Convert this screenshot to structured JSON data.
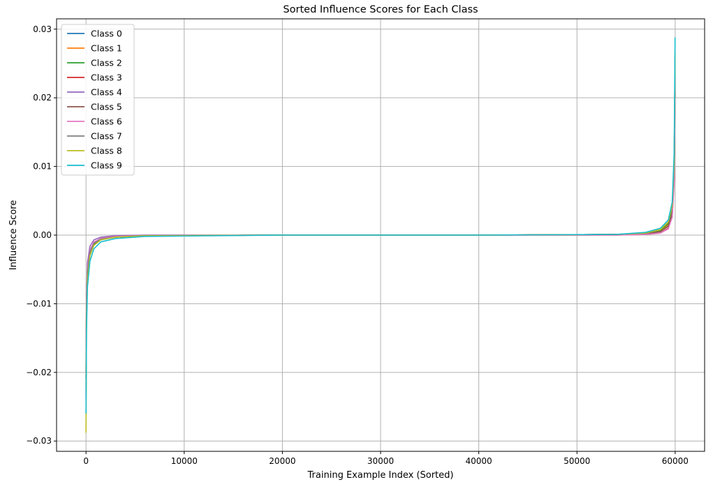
{
  "chart_data": {
    "type": "line",
    "title": "Sorted Influence Scores for Each Class",
    "xlabel": "Training Example Index (Sorted)",
    "ylabel": "Influence Score",
    "xlim": [
      -3000,
      63000
    ],
    "ylim": [
      -0.0315,
      0.0315
    ],
    "xticks": [
      {
        "value": 0,
        "label": "0"
      },
      {
        "value": 10000,
        "label": "10000"
      },
      {
        "value": 20000,
        "label": "20000"
      },
      {
        "value": 30000,
        "label": "30000"
      },
      {
        "value": 40000,
        "label": "40000"
      },
      {
        "value": 50000,
        "label": "50000"
      },
      {
        "value": 60000,
        "label": "60000"
      }
    ],
    "yticks": [
      {
        "value": -0.03,
        "label": "−0.03"
      },
      {
        "value": -0.02,
        "label": "−0.02"
      },
      {
        "value": -0.01,
        "label": "−0.01"
      },
      {
        "value": 0.0,
        "label": "0.00"
      },
      {
        "value": 0.01,
        "label": "0.01"
      },
      {
        "value": 0.02,
        "label": "0.02"
      },
      {
        "value": 0.03,
        "label": "0.03"
      }
    ],
    "grid": true,
    "legend_position": "top-left",
    "series": [
      {
        "name": "Class 0",
        "color": "#1f77b4",
        "x": [
          0,
          50,
          150,
          400,
          800,
          1500,
          3000,
          6000,
          20000,
          40000,
          54000,
          57000,
          58500,
          59300,
          59700,
          59900,
          59990
        ],
        "y": [
          -0.023,
          -0.012,
          -0.006,
          -0.0028,
          -0.0014,
          -0.0007,
          -0.0003,
          -0.0001,
          0.0,
          0.0,
          0.0001,
          0.0003,
          0.0007,
          0.0018,
          0.004,
          0.01,
          0.025
        ]
      },
      {
        "name": "Class 1",
        "color": "#ff7f0e",
        "x": [
          0,
          50,
          150,
          400,
          800,
          1500,
          3000,
          6000,
          20000,
          40000,
          54000,
          57000,
          58500,
          59300,
          59700,
          59900,
          59990
        ],
        "y": [
          -0.02,
          -0.01,
          -0.005,
          -0.0022,
          -0.0011,
          -0.0005,
          -0.0002,
          -0.0001,
          0.0,
          0.0,
          0.0001,
          0.0002,
          0.0006,
          0.0015,
          0.0035,
          0.009,
          0.022
        ]
      },
      {
        "name": "Class 2",
        "color": "#2ca02c",
        "x": [
          0,
          50,
          150,
          400,
          800,
          1500,
          3000,
          6000,
          20000,
          40000,
          54000,
          57000,
          58500,
          59300,
          59700,
          59900,
          59990
        ],
        "y": [
          -0.022,
          -0.011,
          -0.0055,
          -0.0026,
          -0.0013,
          -0.0006,
          -0.0003,
          -0.0001,
          0.0,
          0.0,
          0.0001,
          0.0003,
          0.0007,
          0.0017,
          0.0038,
          0.0095,
          0.024
        ]
      },
      {
        "name": "Class 3",
        "color": "#d62728",
        "x": [
          0,
          50,
          150,
          400,
          800,
          1500,
          3000,
          6000,
          20000,
          40000,
          54000,
          57000,
          58500,
          59300,
          59700,
          59900,
          59990
        ],
        "y": [
          -0.021,
          -0.0105,
          -0.0052,
          -0.0024,
          -0.0012,
          -0.0006,
          -0.0002,
          -0.0001,
          0.0,
          0.0,
          0.0,
          0.0001,
          0.0003,
          0.001,
          0.0028,
          0.008,
          0.021
        ]
      },
      {
        "name": "Class 4",
        "color": "#9467bd",
        "x": [
          0,
          50,
          150,
          400,
          800,
          1500,
          3000,
          6000,
          20000,
          40000,
          54000,
          57000,
          58500,
          59300,
          59700,
          59900,
          59990
        ],
        "y": [
          -0.024,
          -0.009,
          -0.004,
          -0.0016,
          -0.0007,
          -0.0003,
          -0.0001,
          0.0,
          0.0,
          0.0,
          0.0001,
          0.0002,
          0.0005,
          0.0013,
          0.0032,
          0.0085,
          0.023
        ]
      },
      {
        "name": "Class 5",
        "color": "#8c564b",
        "x": [
          0,
          50,
          150,
          400,
          800,
          1500,
          3000,
          6000,
          20000,
          40000,
          54000,
          57000,
          58500,
          59300,
          59700,
          59900,
          59990
        ],
        "y": [
          -0.02,
          -0.01,
          -0.005,
          -0.0023,
          -0.0011,
          -0.0005,
          -0.0002,
          -0.0001,
          0.0,
          0.0,
          0.0001,
          0.0002,
          0.0005,
          0.0013,
          0.0031,
          0.0082,
          0.021
        ]
      },
      {
        "name": "Class 6",
        "color": "#e377c2",
        "x": [
          0,
          50,
          150,
          400,
          800,
          1500,
          3000,
          6000,
          20000,
          40000,
          54000,
          57000,
          58500,
          59300,
          59700,
          59900,
          59990
        ],
        "y": [
          -0.019,
          -0.0095,
          -0.0048,
          -0.0022,
          -0.001,
          -0.0005,
          -0.0002,
          -0.0001,
          0.0,
          0.0,
          0.0,
          0.0001,
          0.0003,
          0.0009,
          0.0026,
          0.0075,
          0.02
        ]
      },
      {
        "name": "Class 7",
        "color": "#7f7f7f",
        "x": [
          0,
          50,
          150,
          400,
          800,
          1500,
          3000,
          6000,
          20000,
          40000,
          54000,
          57000,
          58500,
          59300,
          59700,
          59900,
          59990
        ],
        "y": [
          -0.021,
          -0.0105,
          -0.0053,
          -0.0025,
          -0.0012,
          -0.0006,
          -0.0003,
          -0.0001,
          0.0,
          0.0,
          0.0001,
          0.0003,
          0.0008,
          0.0019,
          0.0042,
          0.0105,
          0.026
        ]
      },
      {
        "name": "Class 8",
        "color": "#bcbd22",
        "x": [
          0,
          50,
          150,
          400,
          800,
          1500,
          3000,
          6000,
          20000,
          40000,
          54000,
          57000,
          58500,
          59300,
          59700,
          59900,
          59990
        ],
        "y": [
          -0.0288,
          -0.013,
          -0.0065,
          -0.003,
          -0.0015,
          -0.0007,
          -0.0003,
          -0.0001,
          0.0,
          0.0,
          0.0001,
          0.0003,
          0.0008,
          0.0019,
          0.0043,
          0.0105,
          0.0265
        ]
      },
      {
        "name": "Class 9",
        "color": "#17becf",
        "x": [
          0,
          50,
          150,
          400,
          800,
          1500,
          3000,
          6000,
          20000,
          40000,
          54000,
          57000,
          58500,
          59300,
          59700,
          59900,
          59990
        ],
        "y": [
          -0.026,
          -0.014,
          -0.0075,
          -0.0038,
          -0.002,
          -0.001,
          -0.0005,
          -0.0002,
          0.0,
          0.0,
          0.0001,
          0.0004,
          0.001,
          0.0022,
          0.0048,
          0.012,
          0.0288
        ]
      }
    ]
  }
}
